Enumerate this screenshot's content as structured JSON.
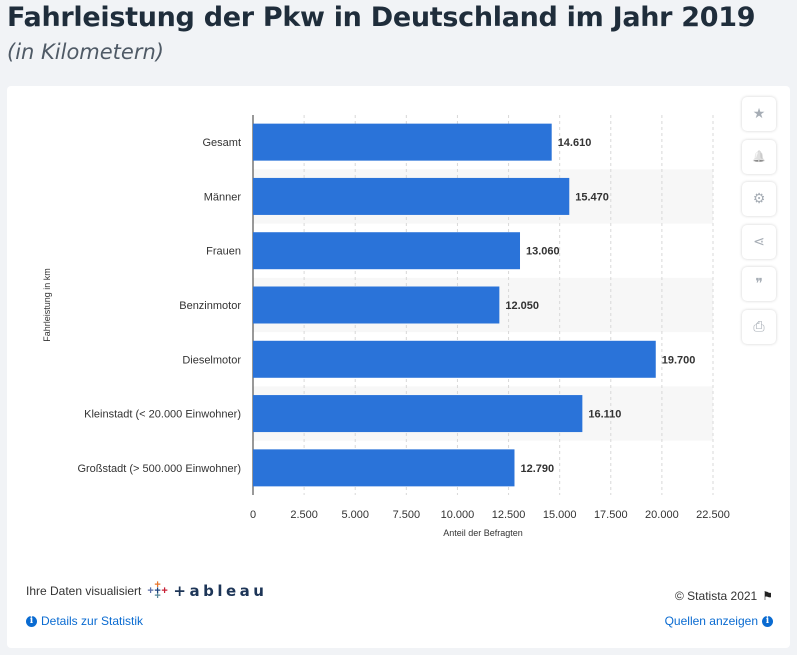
{
  "header": {
    "title": "Fahrleistung der Pkw in Deutschland im Jahr 2019",
    "subtitle": "(in Kilometern)"
  },
  "colors": {
    "bar": "#2a73d9",
    "accent": "#0a6bd1",
    "text": "#333333",
    "grid": "#d8d8d8",
    "stripe": "#f7f7f7"
  },
  "chart_data": {
    "type": "bar",
    "orientation": "horizontal",
    "categories": [
      "Gesamt",
      "Männer",
      "Frauen",
      "Benzinmotor",
      "Dieselmotor",
      "Kleinstadt (< 20.000 Einwohner)",
      "Großstadt (> 500.000 Einwohner)"
    ],
    "values": [
      14610,
      15470,
      13060,
      12050,
      19700,
      16110,
      12790
    ],
    "value_labels": [
      "14.610",
      "15.470",
      "13.060",
      "12.050",
      "19.700",
      "16.110",
      "12.790"
    ],
    "xticks": [
      0,
      2500,
      5000,
      7500,
      10000,
      12500,
      15000,
      17500,
      20000,
      22500
    ],
    "xtick_labels": [
      "0",
      "2.500",
      "5.000",
      "7.500",
      "10.000",
      "12.500",
      "15.000",
      "17.500",
      "20.000",
      "22.500"
    ],
    "xlim": [
      0,
      22500
    ],
    "xlabel": "Anteil der Befragten",
    "ylabel": "Fahrleistung in km",
    "grid": true
  },
  "sidebar": {
    "buttons": [
      {
        "icon": "star-icon",
        "glyph": "★"
      },
      {
        "icon": "bell-icon",
        "glyph": "🔔"
      },
      {
        "icon": "gear-icon",
        "glyph": "⚙"
      },
      {
        "icon": "share-icon",
        "glyph": "⋖"
      },
      {
        "icon": "quote-icon",
        "glyph": "❞"
      },
      {
        "icon": "print-icon",
        "glyph": "⎙"
      }
    ]
  },
  "footer": {
    "visualized_label": "Ihre Daten visualisiert",
    "tableau_word": "+ableau",
    "copyright": "© Statista 2021",
    "details_link": "Details zur Statistik",
    "sources_link": "Quellen anzeigen"
  }
}
